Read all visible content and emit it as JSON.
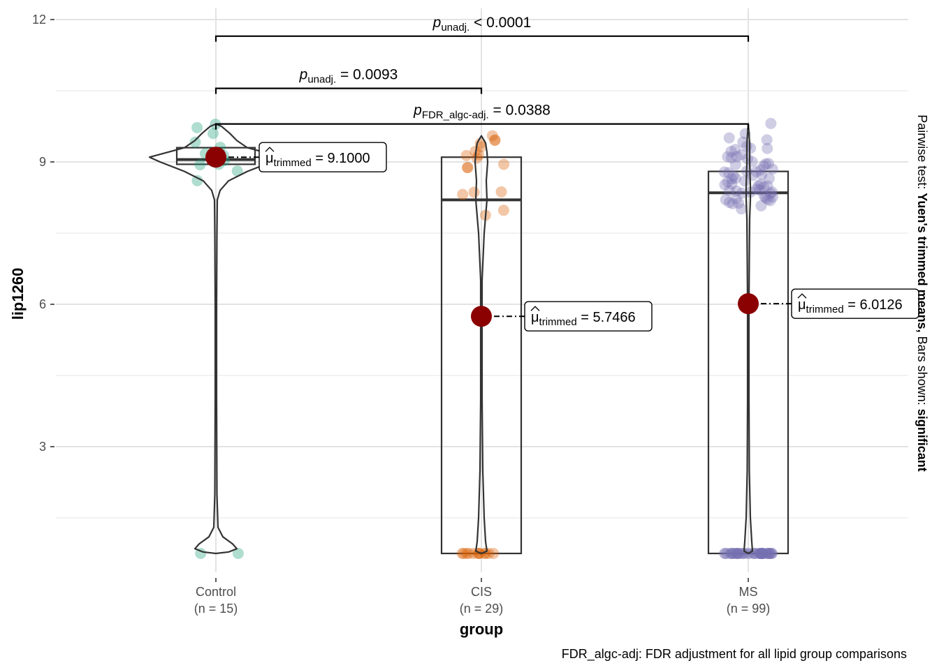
{
  "chart_data": {
    "type": "violin-box",
    "xlabel": "group",
    "ylabel": "lip1260",
    "ylim": [
      0.5,
      12.3
    ],
    "yticks": [
      3,
      6,
      9,
      12
    ],
    "grid": true,
    "side_caption": {
      "prefix": "Pairwise test: ",
      "test": "Yuen's trimmed means,",
      "middle": " Bars shown: ",
      "shown": "significant"
    },
    "caption": "FDR_algc-adj: FDR adjustment for all lipid group comparisons",
    "groups": [
      {
        "name": "Control",
        "n_label": "(n = 15)",
        "color": "#1B9E77",
        "box": {
          "q1": 8.95,
          "median": 9.05,
          "q3": 9.3,
          "min": 0.75,
          "max": 9.8
        },
        "trimmed_mean": 9.1,
        "mean_label": {
          "prefix": "μ",
          "sub": "trimmed",
          "value": "= 9.1000"
        },
        "points": [
          9.8,
          9.7,
          9.6,
          9.45,
          9.3,
          9.2,
          9.1,
          9.05,
          9.0,
          8.95,
          8.9,
          8.85,
          8.6,
          0.75,
          0.75
        ]
      },
      {
        "name": "CIS",
        "n_label": "(n = 29)",
        "color": "#D95F02",
        "box": {
          "q1": 0.75,
          "median": 8.2,
          "q3": 9.1,
          "min": 0.75,
          "max": 9.55
        },
        "trimmed_mean": 5.7466,
        "mean_label": {
          "prefix": "μ",
          "sub": "trimmed",
          "value": "= 5.7466"
        },
        "points": [
          9.55,
          9.5,
          9.45,
          9.4,
          9.35,
          9.2,
          9.15,
          9.15,
          9.1,
          8.95,
          8.9,
          8.85,
          8.4,
          8.35,
          8.35,
          7.95,
          7.9,
          0.75,
          0.75,
          0.75,
          0.75,
          0.75,
          0.75,
          0.75,
          0.75,
          0.75,
          0.75,
          0.75,
          0.75
        ]
      },
      {
        "name": "MS",
        "n_label": "(n = 99)",
        "color": "#7570B3",
        "box": {
          "q1": 0.75,
          "median": 8.35,
          "q3": 8.8,
          "min": 0.75,
          "max": 9.8
        },
        "trimmed_mean": 6.0126,
        "mean_label": {
          "prefix": "μ",
          "sub": "trimmed",
          "value": "= 6.0126"
        },
        "points": [
          9.8,
          9.6,
          9.5,
          9.45,
          9.4,
          9.35,
          9.3,
          9.25,
          9.2,
          9.15,
          9.1,
          9.05,
          9.0,
          8.95,
          8.9,
          8.9,
          8.85,
          8.8,
          8.8,
          8.75,
          8.7,
          8.7,
          8.65,
          8.6,
          8.6,
          8.55,
          8.5,
          8.5,
          8.45,
          8.4,
          8.4,
          8.35,
          8.35,
          8.3,
          8.3,
          8.25,
          8.2,
          8.2,
          8.15,
          8.1,
          8.05,
          8.0,
          8.55,
          8.45,
          8.65,
          8.75,
          8.85,
          9.05,
          9.25,
          8.25,
          8.35,
          8.6,
          8.7,
          8.95,
          9.15,
          8.5,
          8.4,
          8.3,
          8.2,
          8.15,
          0.75,
          0.75,
          0.75,
          0.75,
          0.75,
          0.75,
          0.75,
          0.75,
          0.75,
          0.75,
          0.75,
          0.75,
          0.75,
          0.75,
          0.75,
          0.75,
          0.75,
          0.75,
          0.75,
          0.75,
          0.75,
          0.75,
          0.75,
          0.75,
          0.75,
          0.75,
          0.75,
          0.75,
          0.75,
          0.75,
          0.75,
          0.75,
          0.75,
          0.75,
          0.75,
          0.75,
          0.75,
          0.75,
          0.75
        ]
      }
    ],
    "comparisons": [
      {
        "from": 0,
        "to": 2,
        "y": 11.65,
        "p_prefix": "p",
        "p_sub": "unadj.",
        "p_value": "< 0.0001"
      },
      {
        "from": 0,
        "to": 1,
        "y": 10.55,
        "p_prefix": "p",
        "p_sub": "unadj.",
        "p_value": "= 0.0093"
      },
      {
        "from": 0,
        "to": 2,
        "y": 9.8,
        "p_prefix": "p",
        "p_sub": "FDR_algc-adj.",
        "p_value": "= 0.0388"
      }
    ]
  }
}
